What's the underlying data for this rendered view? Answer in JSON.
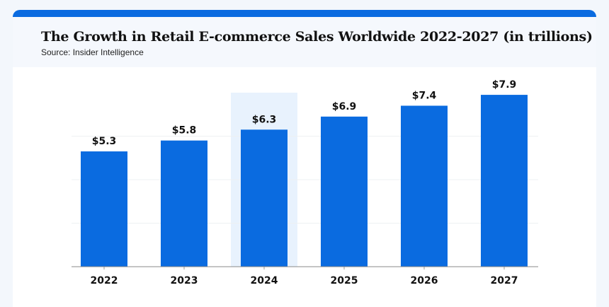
{
  "chart_data": {
    "type": "bar",
    "title": "The Growth in Retail E-commerce Sales Worldwide 2022-2027 (in trillions)",
    "subtitle": "Source: Insider Intelligence",
    "categories": [
      "2022",
      "2023",
      "2024",
      "2025",
      "2026",
      "2027"
    ],
    "values": [
      5.3,
      5.8,
      6.3,
      6.9,
      7.4,
      7.9
    ],
    "data_labels": [
      "$5.3",
      "$5.8",
      "$6.3",
      "$6.9",
      "$7.4",
      "$7.9"
    ],
    "highlighted_category": "2024",
    "ylim": [
      0,
      8
    ],
    "gridlines": [
      2,
      4,
      6
    ],
    "grid": true,
    "colors": {
      "bar": "#0a6be0",
      "highlight": "#e8f2fd",
      "accent": "#0a6be0"
    }
  }
}
